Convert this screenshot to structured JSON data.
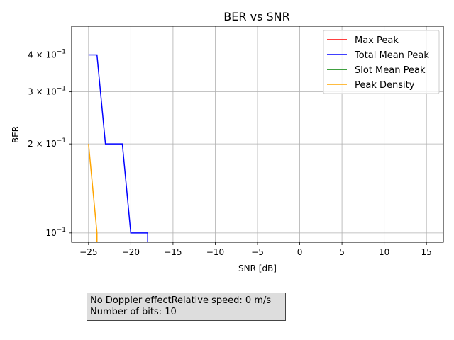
{
  "chart_data": {
    "type": "line",
    "title": "BER vs SNR",
    "xlabel": "SNR [dB]",
    "ylabel": "BER",
    "yscale": "log",
    "xlim": [
      -27,
      17
    ],
    "ylim": [
      0.093,
      0.5
    ],
    "x_ticks": [
      -25,
      -20,
      -15,
      -10,
      -5,
      0,
      5,
      10,
      15
    ],
    "x_tick_labels": [
      "−25",
      "−20",
      "−15",
      "−10",
      "−5",
      "0",
      "5",
      "10",
      "15"
    ],
    "y_ticks": [
      0.1,
      0.2,
      0.3,
      0.4
    ],
    "y_tick_mantissa": [
      "10",
      "2 × 10",
      "3 × 10",
      "4 × 10"
    ],
    "y_tick_exponent": "−1",
    "grid": true,
    "legend_position": "top-right",
    "series": [
      {
        "name": "Max Peak",
        "color": "#ff0000",
        "x": [],
        "y": []
      },
      {
        "name": "Total Mean Peak",
        "color": "#0000ff",
        "x": [
          -25,
          -24,
          -23,
          -22,
          -21,
          -20,
          -19,
          -18
        ],
        "y": [
          0.4,
          0.4,
          0.2,
          0.2,
          0.2,
          0.1,
          0.1,
          0.1
        ]
      },
      {
        "name": "Slot Mean Peak",
        "color": "#008000",
        "x": [],
        "y": []
      },
      {
        "name": "Peak Density",
        "color": "#ffa500",
        "x": [
          -25,
          -24
        ],
        "y": [
          0.2,
          0.1
        ]
      }
    ],
    "annotation": {
      "line1": "No Doppler effectRelative speed: 0 m/s",
      "line2": "Number of bits: 10"
    }
  }
}
